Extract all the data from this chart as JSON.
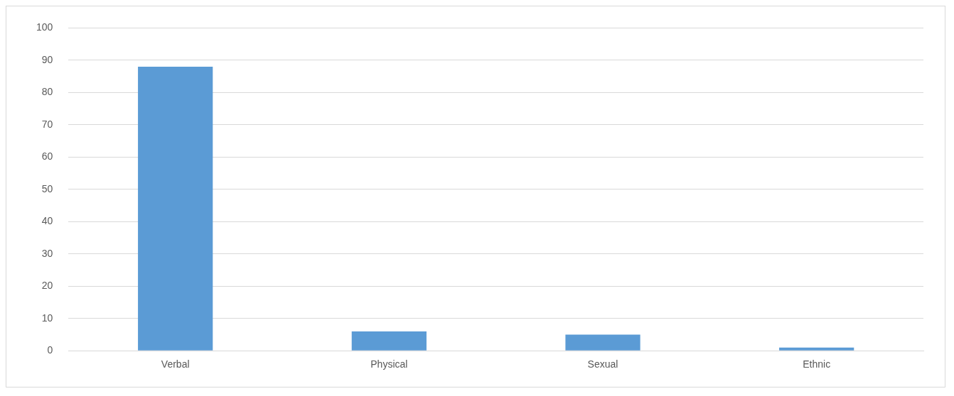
{
  "chart_data": {
    "type": "bar",
    "categories": [
      "Verbal",
      "Physical",
      "Sexual",
      "Ethnic"
    ],
    "values": [
      88,
      6,
      5,
      1
    ],
    "color": "#5b9bd5",
    "ylim": [
      0,
      100
    ],
    "yticks": [
      0,
      10,
      20,
      30,
      40,
      50,
      60,
      70,
      80,
      90,
      100
    ],
    "grid": "y",
    "legend": false
  }
}
